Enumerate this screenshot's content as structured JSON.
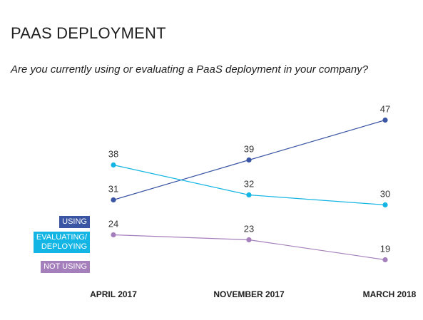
{
  "title": "PAAS DEPLOYMENT",
  "subtitle": "Are you currently using or evaluating a PaaS deployment in your company?",
  "legend": [
    {
      "label": "USING",
      "color": "#3a55a4"
    },
    {
      "label": "EVALUATING/\nDEPLOYING",
      "color": "#12b5e3"
    },
    {
      "label": "NOT USING",
      "color": "#a57fbc"
    }
  ],
  "chart_data": {
    "type": "line",
    "categories": [
      "APRIL 2017",
      "NOVEMBER 2017",
      "MARCH 2018"
    ],
    "series": [
      {
        "name": "USING",
        "values": [
          31,
          39,
          47
        ],
        "color": "#3a55a4"
      },
      {
        "name": "EVALUATING/ DEPLOYING",
        "values": [
          38,
          32,
          30
        ],
        "color": "#12b5e3"
      },
      {
        "name": "NOT USING",
        "values": [
          24,
          23,
          19
        ],
        "color": "#a57fbc"
      }
    ],
    "grid": false,
    "legend_position": "left"
  }
}
